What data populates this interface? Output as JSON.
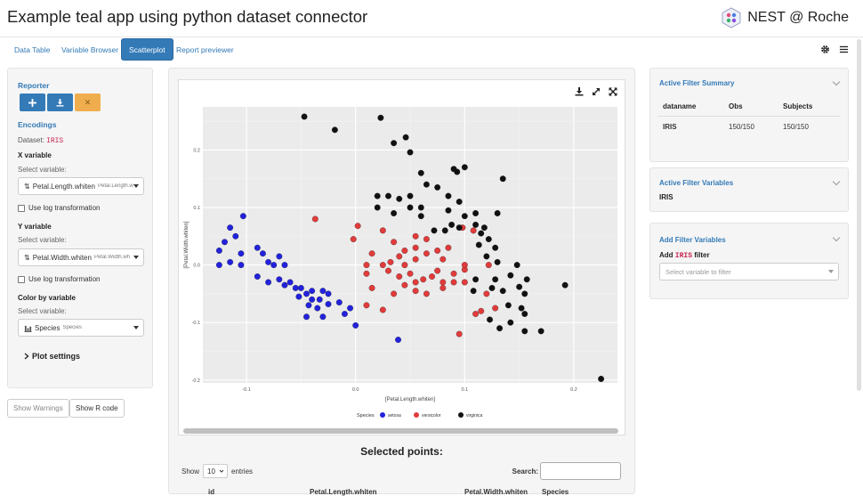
{
  "header": {
    "title": "Example teal app using python dataset connector",
    "brand": "NEST @ Roche"
  },
  "tabs": [
    "Data Table",
    "Variable Browser",
    "Scatterplot",
    "Report previewer"
  ],
  "left": {
    "reporter": "Reporter",
    "encodings": "Encodings",
    "dataset_label": "Dataset:",
    "dataset_value": "IRIS",
    "x_var_title": "X variable",
    "x_select_label": "Select variable:",
    "x_value": "Petal.Length.whiten",
    "x_value_small": "Petal.Length.w",
    "x_log": "Use log transformation",
    "y_var_title": "Y variable",
    "y_select_label": "Select variable:",
    "y_value": "Petal.Width.whiten",
    "y_value_small": "Petal.Width.wh",
    "y_log": "Use log transformation",
    "color_title": "Color by variable",
    "color_select_label": "Select variable:",
    "color_value": "Species",
    "color_value_small": "Species",
    "plot_settings": "Plot settings"
  },
  "buttons": {
    "warnings": "Show Warnings",
    "rcode": "Show R code"
  },
  "chart_data": {
    "type": "scatter",
    "xlabel": "[Petal.Length.whiten]",
    "ylabel": "[Petal.Width.whiten]",
    "xlim": [
      -0.14,
      0.24
    ],
    "ylim": [
      -0.205,
      0.275
    ],
    "x_ticks": [
      -0.1,
      0.0,
      0.1,
      0.2
    ],
    "x_tick_labels": [
      "-0.1",
      "0.0",
      "0.1",
      "0.2"
    ],
    "y_ticks": [
      -0.2,
      -0.1,
      0.0,
      0.1,
      0.2
    ],
    "y_tick_labels": [
      "-0.2",
      "-0.1",
      "0.0",
      "0.1",
      "0.2"
    ],
    "grid": true,
    "legend_title": "Species",
    "legend_position": "bottom",
    "series": [
      {
        "name": "setosa",
        "color": "#2222dd",
        "points": [
          [
            -0.103,
            0.085
          ],
          [
            -0.115,
            0.065
          ],
          [
            -0.11,
            0.05
          ],
          [
            -0.12,
            0.04
          ],
          [
            -0.125,
            0.025
          ],
          [
            -0.09,
            0.03
          ],
          [
            -0.105,
            0.02
          ],
          [
            -0.115,
            0.005
          ],
          [
            -0.125,
            0.0
          ],
          [
            -0.105,
            0.0
          ],
          [
            -0.085,
            0.02
          ],
          [
            -0.08,
            0.005
          ],
          [
            -0.07,
            0.015
          ],
          [
            -0.075,
            0.0
          ],
          [
            -0.065,
            0.0
          ],
          [
            -0.09,
            -0.02
          ],
          [
            -0.08,
            -0.03
          ],
          [
            -0.07,
            -0.025
          ],
          [
            -0.065,
            -0.035
          ],
          [
            -0.06,
            -0.03
          ],
          [
            -0.055,
            -0.04
          ],
          [
            -0.052,
            -0.055
          ],
          [
            -0.045,
            -0.05
          ],
          [
            -0.05,
            -0.04
          ],
          [
            -0.04,
            -0.045
          ],
          [
            -0.04,
            -0.06
          ],
          [
            -0.03,
            -0.045
          ],
          [
            -0.033,
            -0.06
          ],
          [
            -0.025,
            -0.05
          ],
          [
            -0.043,
            -0.07
          ],
          [
            -0.035,
            -0.075
          ],
          [
            -0.025,
            -0.068
          ],
          [
            -0.015,
            -0.065
          ],
          [
            -0.005,
            -0.075
          ],
          [
            -0.045,
            -0.09
          ],
          [
            -0.03,
            -0.09
          ],
          [
            -0.01,
            -0.085
          ],
          [
            0.0,
            -0.105
          ],
          [
            0.039,
            -0.13
          ]
        ]
      },
      {
        "name": "versicolor",
        "color": "#e23b3b",
        "points": [
          [
            -0.037,
            0.08
          ],
          [
            0.002,
            0.068
          ],
          [
            -0.002,
            0.045
          ],
          [
            0.025,
            0.06
          ],
          [
            0.035,
            0.04
          ],
          [
            0.055,
            0.05
          ],
          [
            0.065,
            0.045
          ],
          [
            0.055,
            0.03
          ],
          [
            0.045,
            0.025
          ],
          [
            0.04,
            0.015
          ],
          [
            0.015,
            0.02
          ],
          [
            0.025,
            0.0
          ],
          [
            0.032,
            0.005
          ],
          [
            0.045,
            0.0
          ],
          [
            0.055,
            0.01
          ],
          [
            0.065,
            0.02
          ],
          [
            0.075,
            0.025
          ],
          [
            0.08,
            0.01
          ],
          [
            0.085,
            0.03
          ],
          [
            0.01,
            0.0
          ],
          [
            0.01,
            -0.015
          ],
          [
            0.03,
            -0.01
          ],
          [
            0.04,
            -0.02
          ],
          [
            0.05,
            -0.015
          ],
          [
            0.055,
            -0.03
          ],
          [
            0.062,
            -0.025
          ],
          [
            0.07,
            -0.02
          ],
          [
            0.075,
            -0.01
          ],
          [
            0.09,
            -0.015
          ],
          [
            0.1,
            -0.008
          ],
          [
            0.08,
            -0.03
          ],
          [
            0.09,
            -0.03
          ],
          [
            0.1,
            -0.03
          ],
          [
            0.045,
            -0.035
          ],
          [
            0.055,
            -0.045
          ],
          [
            0.065,
            -0.05
          ],
          [
            0.08,
            -0.04
          ],
          [
            0.098,
            0.065
          ],
          [
            0.1,
            0.0
          ],
          [
            0.108,
            0.06
          ],
          [
            0.015,
            -0.04
          ],
          [
            0.035,
            -0.05
          ],
          [
            0.01,
            -0.07
          ],
          [
            0.025,
            -0.078
          ],
          [
            0.115,
            -0.08
          ],
          [
            0.128,
            -0.075
          ],
          [
            0.095,
            -0.12
          ],
          [
            0.11,
            -0.085
          ],
          [
            0.122,
            0.0
          ],
          [
            0.12,
            -0.05
          ]
        ]
      },
      {
        "name": "virginica",
        "color": "#111111",
        "points": [
          [
            -0.047,
            0.258
          ],
          [
            -0.019,
            0.235
          ],
          [
            0.023,
            0.256
          ],
          [
            0.046,
            0.222
          ],
          [
            0.035,
            0.212
          ],
          [
            0.05,
            0.196
          ],
          [
            0.09,
            0.167
          ],
          [
            0.1,
            0.17
          ],
          [
            0.093,
            0.162
          ],
          [
            0.135,
            0.15
          ],
          [
            0.06,
            0.16
          ],
          [
            0.03,
            0.12
          ],
          [
            0.05,
            0.12
          ],
          [
            0.065,
            0.14
          ],
          [
            0.075,
            0.135
          ],
          [
            0.085,
            0.12
          ],
          [
            0.095,
            0.11
          ],
          [
            0.04,
            0.115
          ],
          [
            0.02,
            0.12
          ],
          [
            0.02,
            0.1
          ],
          [
            0.05,
            0.1
          ],
          [
            0.06,
            0.1
          ],
          [
            0.085,
            0.095
          ],
          [
            0.11,
            0.09
          ],
          [
            0.13,
            0.09
          ],
          [
            0.035,
            0.09
          ],
          [
            0.06,
            0.085
          ],
          [
            0.072,
            0.06
          ],
          [
            0.082,
            0.06
          ],
          [
            0.088,
            0.07
          ],
          [
            0.1,
            0.085
          ],
          [
            0.095,
            0.065
          ],
          [
            0.11,
            0.07
          ],
          [
            0.115,
            0.055
          ],
          [
            0.118,
            0.065
          ],
          [
            0.122,
            0.045
          ],
          [
            0.113,
            0.035
          ],
          [
            0.128,
            0.03
          ],
          [
            0.12,
            0.015
          ],
          [
            0.13,
            0.005
          ],
          [
            0.148,
            0.0
          ],
          [
            0.142,
            -0.018
          ],
          [
            0.157,
            -0.025
          ],
          [
            0.15,
            -0.038
          ],
          [
            0.128,
            -0.025
          ],
          [
            0.125,
            -0.04
          ],
          [
            0.135,
            -0.045
          ],
          [
            0.155,
            -0.05
          ],
          [
            0.14,
            -0.07
          ],
          [
            0.152,
            -0.075
          ],
          [
            0.155,
            -0.085
          ],
          [
            0.142,
            -0.1
          ],
          [
            0.123,
            -0.095
          ],
          [
            0.132,
            -0.11
          ],
          [
            0.155,
            -0.115
          ],
          [
            0.17,
            -0.115
          ],
          [
            0.192,
            -0.035
          ],
          [
            0.225,
            -0.198
          ],
          [
            0.108,
            -0.045
          ],
          [
            0.11,
            -0.025
          ]
        ]
      }
    ]
  },
  "plot_icons": [
    "download-icon",
    "expand-icon",
    "fullscreen-icon"
  ],
  "table": {
    "title": "Selected points:",
    "show": "Show",
    "entries_value": "10",
    "entries": "entries",
    "search": "Search:",
    "columns": [
      "id",
      "Petal.Length.whiten",
      "Petal.Width.whiten",
      "Species"
    ]
  },
  "right": {
    "summary_title": "Active Filter Summary",
    "summary_headers": [
      "dataname",
      "Obs",
      "Subjects"
    ],
    "summary_row": [
      "IRIS",
      "150/150",
      "150/150"
    ],
    "vars_title": "Active Filter Variables",
    "vars_value": "IRIS",
    "add_title": "Add Filter Variables",
    "add_label_prefix": "Add",
    "add_label_code": "IRIS",
    "add_label_suffix": "filter",
    "add_placeholder": "Select variable to filter"
  }
}
